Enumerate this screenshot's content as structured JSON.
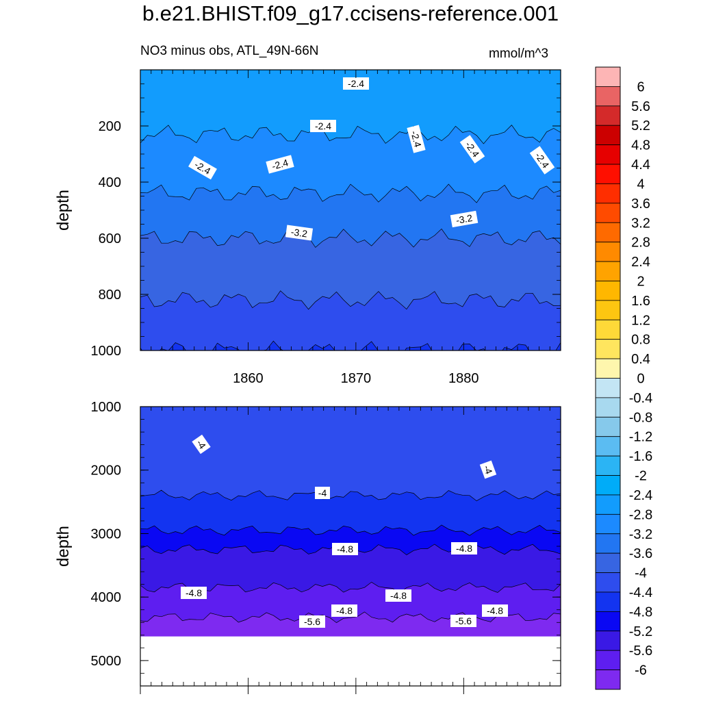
{
  "title": "b.e21.BHIST.f09_g17.ccisens-reference.001",
  "subtitle_left": "NO3 minus obs, ATL_49N-66N",
  "subtitle_right": "mmol/m^3",
  "chart_data": [
    {
      "type": "heatmap",
      "panel": "upper",
      "ylabel": "depth",
      "xlim": [
        1850,
        1889
      ],
      "ylim": [
        1000,
        0
      ],
      "x_ticks": [
        "1860",
        "1870",
        "1880"
      ],
      "y_ticks": [
        "200",
        "400",
        "600",
        "800",
        "1000"
      ],
      "contour_labels": [
        "-2.4",
        "-2.4",
        "-2.4",
        "-2.4",
        "-2.4",
        "-2.4",
        "-2.4",
        "-3.2",
        "-3.2"
      ],
      "levels": [
        {
          "value": -2.4,
          "depth": 50
        },
        {
          "value": -2.8,
          "depth": 230
        },
        {
          "value": -3.2,
          "depth": 440
        },
        {
          "value": -3.6,
          "depth": 600
        },
        {
          "value": -4.0,
          "depth": 820
        },
        {
          "value": -4.4,
          "depth": 1000
        }
      ]
    },
    {
      "type": "heatmap",
      "panel": "lower",
      "ylabel": "depth",
      "xlim": [
        1850,
        1889
      ],
      "ylim": [
        5400,
        1000
      ],
      "y_ticks": [
        "1000",
        "2000",
        "3000",
        "4000",
        "5000"
      ],
      "contour_labels": [
        "-4",
        "-4",
        "-4",
        "-4.8",
        "-4.8",
        "-4.8",
        "-4.8",
        "-4.8",
        "-4.8",
        "-5.6",
        "-5.6"
      ],
      "levels": [
        {
          "value": -4.0,
          "depth": 1000
        },
        {
          "value": -4.4,
          "depth": 2400
        },
        {
          "value": -4.8,
          "depth": 2950
        },
        {
          "value": -5.2,
          "depth": 3250
        },
        {
          "value": -5.6,
          "depth": 3850
        },
        {
          "value": -6.0,
          "depth": 4320
        }
      ],
      "no_data_below_depth": 4620
    }
  ],
  "colorbar": {
    "labels": [
      "6",
      "5.6",
      "5.2",
      "4.8",
      "4.4",
      "4",
      "3.6",
      "3.2",
      "2.8",
      "2.4",
      "2",
      "1.6",
      "1.2",
      "0.8",
      "0.4",
      "0",
      "-0.4",
      "-0.8",
      "-1.2",
      "-1.6",
      "-2",
      "-2.4",
      "-2.8",
      "-3.2",
      "-3.6",
      "-4",
      "-4.4",
      "-4.8",
      "-5.2",
      "-5.6",
      "-6"
    ],
    "colors": [
      "#fdb5b5",
      "#e96464",
      "#d42a2a",
      "#cc0000",
      "#e60000",
      "#ff0f00",
      "#ff2e00",
      "#ff4b00",
      "#fe6a00",
      "#ff8a00",
      "#ffa300",
      "#ffb700",
      "#fdc611",
      "#fed938",
      "#ffe55e",
      "#fef6ad",
      "#c3e5f4",
      "#a8d9ef",
      "#86c9eb",
      "#5bbcf2",
      "#2bb4f4",
      "#00acf8",
      "#129cfd",
      "#1c8aff",
      "#2276f2",
      "#3765e2",
      "#2e4dee",
      "#1334f0",
      "#0a08f3",
      "#3a19e5",
      "#5e1ef0",
      "#7e2af0"
    ]
  }
}
